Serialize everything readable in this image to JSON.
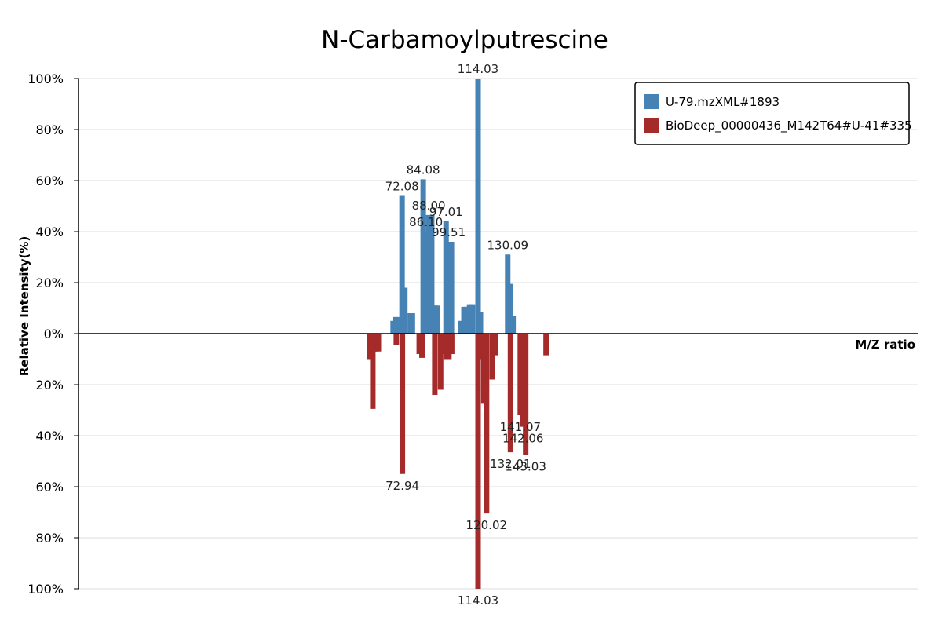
{
  "chart_data": {
    "type": "bar",
    "title": "N-Carbamoylputrescine",
    "xlabel": "M/Z ratio",
    "ylabel": "Relative Intensity(%)",
    "xlim": [
      0,
      200
    ],
    "ylim": [
      -100,
      100
    ],
    "grid": true,
    "legend_position": "top-right",
    "y_ticks_top": [
      "100%",
      "80%",
      "60%",
      "40%",
      "20%",
      "0%"
    ],
    "y_ticks_bottom": [
      "20%",
      "40%",
      "60%",
      "80%",
      "100%"
    ],
    "series": [
      {
        "name": "U-79.mzXML#1893",
        "color": "#4682b4",
        "points": [
          {
            "mz": 74.92,
            "intensity": 5
          },
          {
            "mz": 75.48,
            "intensity": 6.5
          },
          {
            "mz": 76.12,
            "intensity": 6.5
          },
          {
            "mz": 77.04,
            "intensity": 54,
            "label": "72.08"
          },
          {
            "mz": 77.7,
            "intensity": 18
          },
          {
            "mz": 79.0,
            "intensity": 8
          },
          {
            "mz": 79.5,
            "intensity": 8
          },
          {
            "mz": 82.08,
            "intensity": 60.5,
            "label": "84.08"
          },
          {
            "mz": 82.74,
            "intensity": 40,
            "label": "86.10"
          },
          {
            "mz": 83.38,
            "intensity": 46.5,
            "label": "88.00"
          },
          {
            "mz": 84.1,
            "intensity": 46.5
          },
          {
            "mz": 84.8,
            "intensity": 11
          },
          {
            "mz": 85.5,
            "intensity": 11
          },
          {
            "mz": 87.52,
            "intensity": 44,
            "label": "97.01"
          },
          {
            "mz": 88.16,
            "intensity": 36,
            "label": "99.51"
          },
          {
            "mz": 88.8,
            "intensity": 36
          },
          {
            "mz": 91.06,
            "intensity": 5
          },
          {
            "mz": 91.78,
            "intensity": 10.5
          },
          {
            "mz": 92.4,
            "intensity": 10.5
          },
          {
            "mz": 93.13,
            "intensity": 11.5
          },
          {
            "mz": 93.8,
            "intensity": 11.5
          },
          {
            "mz": 95.14,
            "intensity": 100,
            "label": "114.03"
          },
          {
            "mz": 95.7,
            "intensity": 8.5
          },
          {
            "mz": 102.2,
            "intensity": 31,
            "label": "130.09"
          },
          {
            "mz": 102.84,
            "intensity": 19.5
          },
          {
            "mz": 103.48,
            "intensity": 7
          }
        ]
      },
      {
        "name": "BioDeep_00000436_M142T64#U-41#335",
        "color": "#a52a2a",
        "points": [
          {
            "mz": 69.38,
            "intensity": 10
          },
          {
            "mz": 70.08,
            "intensity": 29.5
          },
          {
            "mz": 70.72,
            "intensity": 7
          },
          {
            "mz": 71.4,
            "intensity": 7
          },
          {
            "mz": 75.68,
            "intensity": 4.5
          },
          {
            "mz": 77.12,
            "intensity": 55,
            "label": "72.94"
          },
          {
            "mz": 81.14,
            "intensity": 8
          },
          {
            "mz": 81.78,
            "intensity": 9.5
          },
          {
            "mz": 84.84,
            "intensity": 24
          },
          {
            "mz": 86.22,
            "intensity": 22
          },
          {
            "mz": 86.86,
            "intensity": 8
          },
          {
            "mz": 87.56,
            "intensity": 10
          },
          {
            "mz": 88.2,
            "intensity": 10
          },
          {
            "mz": 88.86,
            "intensity": 8
          },
          {
            "mz": 95.14,
            "intensity": 100,
            "label": "114.03"
          },
          {
            "mz": 95.86,
            "intensity": 10
          },
          {
            "mz": 96.52,
            "intensity": 27.5
          },
          {
            "mz": 97.16,
            "intensity": 70.5,
            "label": "120.02"
          },
          {
            "mz": 98.52,
            "intensity": 18
          },
          {
            "mz": 99.16,
            "intensity": 8.5
          },
          {
            "mz": 102.86,
            "intensity": 46.5,
            "label": "132.01"
          },
          {
            "mz": 105.2,
            "intensity": 32,
            "label": "141.07"
          },
          {
            "mz": 105.84,
            "intensity": 36.5,
            "label": "142.06"
          },
          {
            "mz": 106.48,
            "intensity": 47.5,
            "label": "143.03"
          },
          {
            "mz": 111.34,
            "intensity": 8.5
          }
        ]
      }
    ]
  }
}
